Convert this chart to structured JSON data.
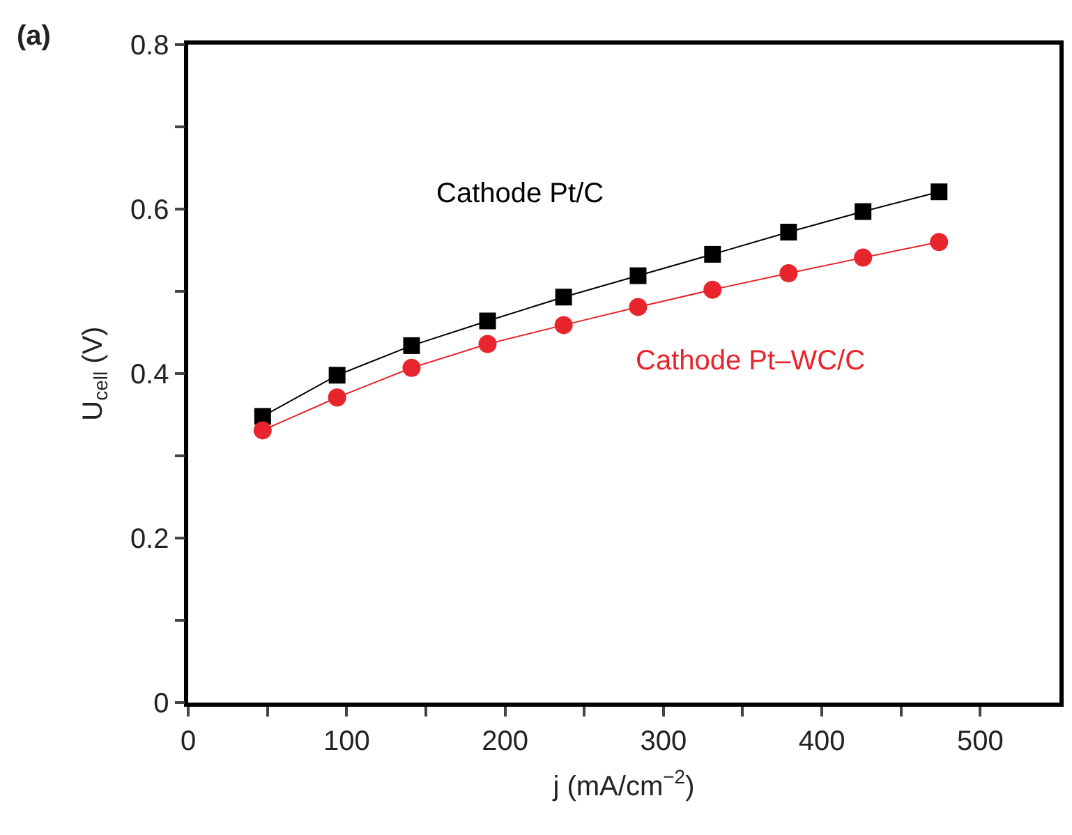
{
  "chart_data": {
    "type": "line",
    "xlabel": "j (mA/cm$^{−2}$)",
    "ylabel": "U$_{cell}$ (V)",
    "annotations": [
      "(a)"
    ],
    "x": [
      47,
      94,
      141,
      189,
      237,
      284,
      331,
      379,
      426,
      474
    ],
    "series": [
      {
        "name": "Cathode Pt/C",
        "color": "#000000",
        "marker": "square",
        "values": [
          0.348,
          0.398,
          0.434,
          0.464,
          0.493,
          0.519,
          0.545,
          0.572,
          0.597,
          0.621
        ]
      },
      {
        "name": "Cathode Pt–WC/C",
        "color": "#e8242c",
        "marker": "circle",
        "values": [
          0.331,
          0.371,
          0.407,
          0.436,
          0.459,
          0.481,
          0.502,
          0.522,
          0.541,
          0.56
        ]
      }
    ],
    "xlim": [
      0,
      550
    ],
    "xticks": [
      0,
      {
        "value": 50,
        "label": null
      },
      100,
      {
        "value": 150,
        "label": null
      },
      200,
      {
        "value": 250,
        "label": null
      },
      300,
      {
        "value": 350,
        "label": null
      },
      400,
      {
        "value": 450,
        "label": null
      },
      500
    ],
    "ylim": [
      0,
      0.8
    ],
    "yticks": [
      0,
      {
        "value": 0.1,
        "label": null
      },
      0.2,
      {
        "value": 0.3,
        "label": null
      },
      0.4,
      {
        "value": 0.5,
        "label": null
      },
      0.6,
      {
        "value": 0.7,
        "label": null
      },
      0.8
    ],
    "legend": false,
    "line_style": "solid"
  }
}
